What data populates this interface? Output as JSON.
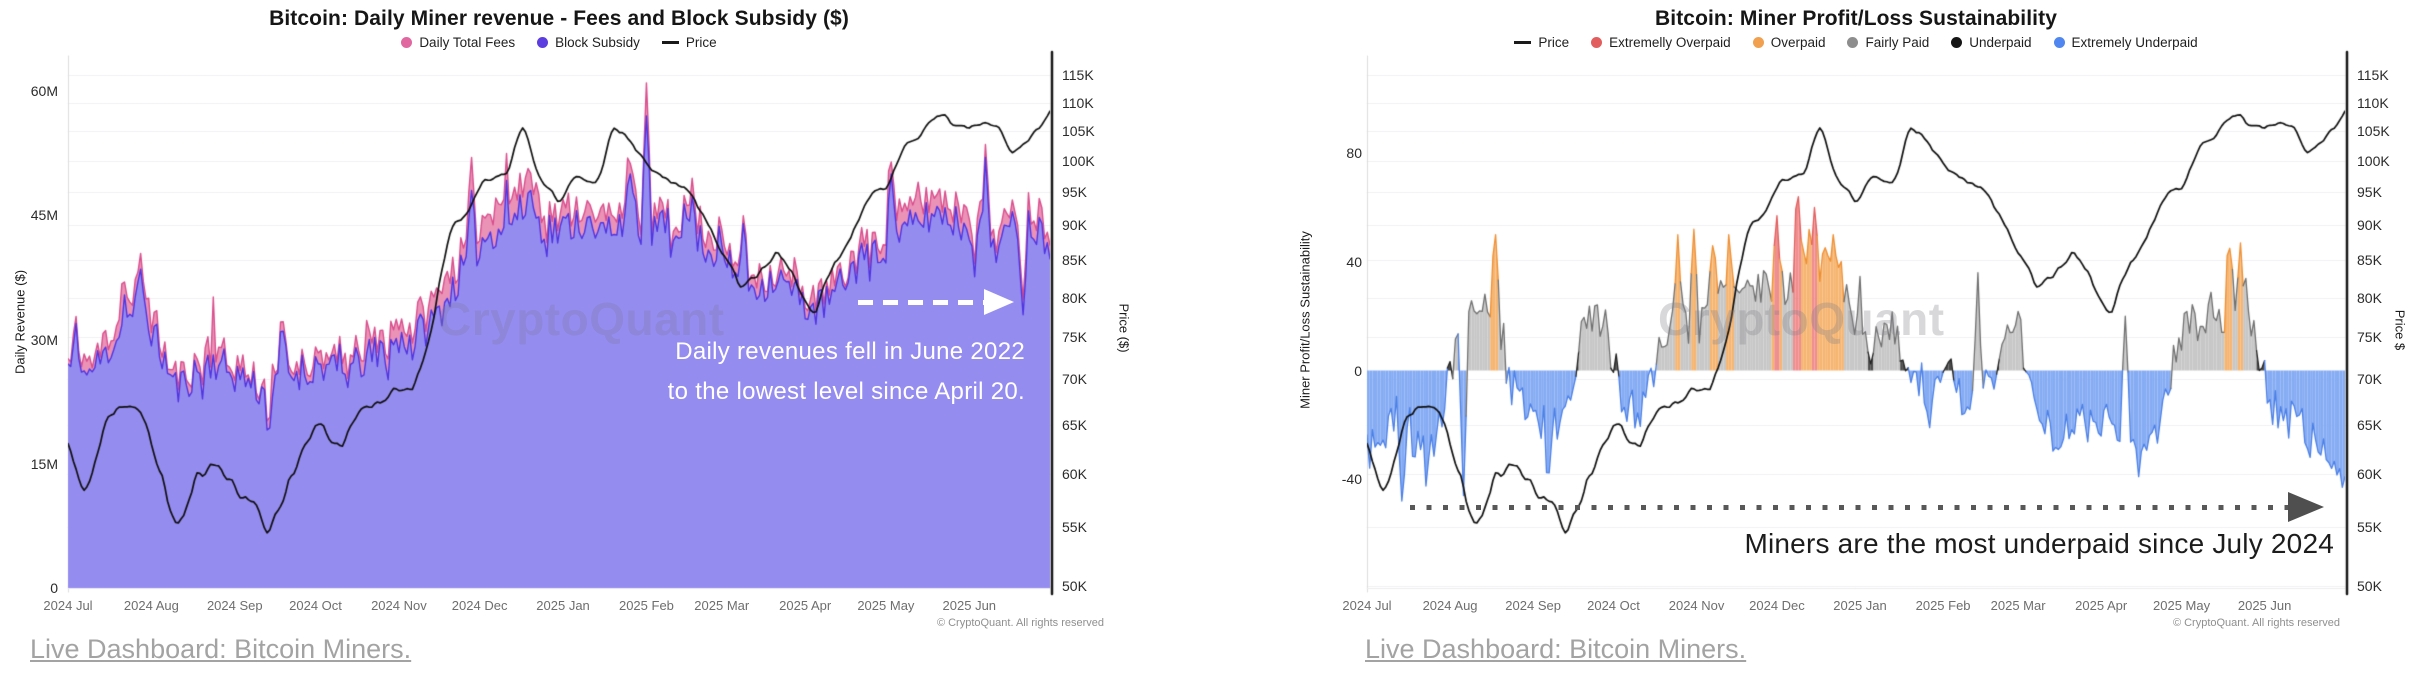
{
  "left_chart": {
    "title": "Bitcoin: Daily Miner revenue - Fees and Block Subsidy ($)",
    "legend": [
      {
        "label": "Daily Total Fees",
        "swatch": "dot",
        "color": "#e0679f"
      },
      {
        "label": "Block Subsidy",
        "swatch": "dot",
        "color": "#5b3de0"
      },
      {
        "label": "Price",
        "swatch": "line",
        "color": "#1a1a1a"
      }
    ],
    "watermark": "CryptoQuant",
    "annotation_line1": "Daily revenues fell in June 2022",
    "annotation_line2": "to the lowest level since April 20.",
    "copyright": "© CryptoQuant. All rights reserved",
    "link": "Live Dashboard: Bitcoin Miners."
  },
  "right_chart": {
    "title": "Bitcoin: Miner Profit/Loss Sustainability",
    "legend": [
      {
        "label": "Price",
        "swatch": "line",
        "color": "#1a1a1a"
      },
      {
        "label": "Extremelly Overpaid",
        "swatch": "dot",
        "color": "#e25d5d"
      },
      {
        "label": "Overpaid",
        "swatch": "dot",
        "color": "#f0a04f"
      },
      {
        "label": "Fairly Paid",
        "swatch": "dot",
        "color": "#8d8d8d"
      },
      {
        "label": "Underpaid",
        "swatch": "dot",
        "color": "#151515"
      },
      {
        "label": "Extremely Underpaid",
        "swatch": "dot",
        "color": "#4f86ef"
      }
    ],
    "watermark": "CryptoQuant",
    "annotation": "Miners are the most underpaid since July 2024",
    "copyright": "© CryptoQuant. All rights reserved",
    "link": "Live Dashboard: Bitcoin Miners."
  },
  "chart_data": [
    {
      "type": "area",
      "title": "Bitcoin: Daily Miner revenue - Fees and Block Subsidy ($)",
      "n_days": 366,
      "x_tick_labels": [
        "2024 Jul",
        "2024 Aug",
        "2024 Sep",
        "2024 Oct",
        "2024 Nov",
        "2024 Dec",
        "2025 Jan",
        "2025 Feb",
        "2025 Mar",
        "2025 Apr",
        "2025 May",
        "2025 Jun"
      ],
      "month_start_day": [
        0,
        31,
        62,
        92,
        123,
        153,
        184,
        215,
        243,
        274,
        304,
        335
      ],
      "y_left": {
        "label": "Daily Revenue ($)",
        "unit": "million USD per day",
        "range": [
          0,
          64
        ],
        "ticks": [
          {
            "v": 0,
            "label": "0"
          },
          {
            "v": 15,
            "label": "15M"
          },
          {
            "v": 30,
            "label": "30M"
          },
          {
            "v": 45,
            "label": "45M"
          },
          {
            "v": 60,
            "label": "60M"
          }
        ]
      },
      "y_right": {
        "label": "Price ($)",
        "scale": "log",
        "range": [
          49.8,
          118.3
        ],
        "ticks": [
          {
            "v": 50,
            "label": "50K"
          },
          {
            "v": 55,
            "label": "55K"
          },
          {
            "v": 60,
            "label": "60K"
          },
          {
            "v": 65,
            "label": "65K"
          },
          {
            "v": 70,
            "label": "70K"
          },
          {
            "v": 75,
            "label": "75K"
          },
          {
            "v": 80,
            "label": "80K"
          },
          {
            "v": 85,
            "label": "85K"
          },
          {
            "v": 90,
            "label": "90K"
          },
          {
            "v": 95,
            "label": "95K"
          },
          {
            "v": 100,
            "label": "100K"
          },
          {
            "v": 105,
            "label": "105K"
          },
          {
            "v": 110,
            "label": "110K"
          },
          {
            "v": 115,
            "label": "115K"
          }
        ]
      },
      "series": {
        "block_subsidy": {
          "name": "Block Subsidy",
          "line": "#4e35e2",
          "fill": "#958cf0",
          "noise_amp": 2.3,
          "weekly_musd": [
            27,
            25.5,
            28,
            31.5,
            34.5,
            29,
            24,
            26,
            27.5,
            26,
            25,
            23,
            25.5,
            26.5,
            27,
            25.5,
            27,
            28.5,
            29.5,
            30.5,
            32,
            35.5,
            39.5,
            42.5,
            44,
            45.5,
            44,
            43,
            44.5,
            42.5,
            44,
            45.5,
            43,
            43.5,
            44.5,
            41.5,
            39.5,
            37,
            36.5,
            37.5,
            35.5,
            33.5,
            35,
            38,
            40.5,
            41.5,
            43,
            44.5,
            45.5,
            44,
            43,
            41.5,
            43.5,
            44,
            42
          ],
          "spikes": [
            {
              "day": 27,
              "value": 38.5
            },
            {
              "day": 80,
              "value": 31
            },
            {
              "day": 150,
              "value": 48
            },
            {
              "day": 172,
              "value": 48
            },
            {
              "day": 209,
              "value": 50
            },
            {
              "day": 215,
              "value": 57
            },
            {
              "day": 251,
              "value": 44
            },
            {
              "day": 306,
              "value": 50
            },
            {
              "day": 341,
              "value": 52
            },
            {
              "day": 355,
              "value": 33
            }
          ]
        },
        "daily_total_fees": {
          "name": "Daily Total Fees",
          "line": "#d94e8c",
          "fill": "#eb92b7",
          "noise_amp": 0.7,
          "weekly_extra_musd": [
            1.2,
            1,
            1.5,
            2,
            1.6,
            1,
            0.8,
            1,
            2.2,
            1.2,
            0.8,
            0.8,
            1,
            1.2,
            1,
            0.8,
            1.2,
            1.8,
            2.2,
            2,
            2.4,
            2.4,
            2,
            2.5,
            3,
            2.5,
            2.2,
            2,
            1.8,
            2,
            1.6,
            1.8,
            1.5,
            1.2,
            1.5,
            1.8,
            1.5,
            1.2,
            1,
            1,
            1.2,
            1.5,
            1,
            1,
            1.5,
            1.8,
            2,
            2.2,
            2,
            2,
            1.8,
            1.5,
            1.5,
            2,
            1.5
          ],
          "spikes": [
            {
              "day": 54,
              "extra": 7
            },
            {
              "day": 111,
              "extra": 4
            },
            {
              "day": 150,
              "extra": 4
            },
            {
              "day": 170,
              "extra": 4.5
            },
            {
              "day": 215,
              "extra": 4
            },
            {
              "day": 305,
              "extra": 3.5
            }
          ]
        },
        "price": {
          "name": "Price",
          "line": "#0f0f0f",
          "noise_amp": 1.1,
          "weekly_kusd": [
            63,
            57.5,
            64.5,
            67.5,
            66.5,
            60.5,
            54.5,
            59.5,
            61,
            59,
            57.5,
            54.5,
            58.5,
            63.5,
            65,
            62.5,
            66.5,
            67.5,
            69.5,
            69,
            76,
            89,
            92,
            97.5,
            97,
            106,
            96.5,
            93.5,
            97.5,
            96,
            105.5,
            103,
            98.5,
            97,
            96,
            91.5,
            86,
            81.5,
            83.5,
            86.5,
            82.5,
            77.5,
            84,
            88,
            94.5,
            95.5,
            102.5,
            104.5,
            108.5,
            105,
            105.5,
            106.5,
            100.5,
            104,
            107.5
          ]
        }
      }
    },
    {
      "type": "oscillator",
      "title": "Bitcoin: Miner Profit/Loss Sustainability",
      "n_days": 366,
      "x_tick_labels": [
        "2024 Jul",
        "2024 Aug",
        "2024 Sep",
        "2024 Oct",
        "2024 Nov",
        "2024 Dec",
        "2025 Jan",
        "2025 Feb",
        "2025 Mar",
        "2025 Apr",
        "2025 May",
        "2025 Jun"
      ],
      "month_start_day": [
        0,
        31,
        62,
        92,
        123,
        153,
        184,
        215,
        243,
        274,
        304,
        335
      ],
      "y_left": {
        "label": "Miner Profit/Loss Sustainability",
        "range": [
          -80,
          115
        ],
        "ticks": [
          {
            "v": -40,
            "label": "-40"
          },
          {
            "v": 0,
            "label": "0"
          },
          {
            "v": 40,
            "label": "40"
          },
          {
            "v": 80,
            "label": "80"
          }
        ]
      },
      "y_right": {
        "label": "Price $",
        "scale": "log",
        "range": [
          49.8,
          118.3
        ],
        "ticks": [
          {
            "v": 50,
            "label": "50K"
          },
          {
            "v": 55,
            "label": "55K"
          },
          {
            "v": 60,
            "label": "60K"
          },
          {
            "v": 65,
            "label": "65K"
          },
          {
            "v": 70,
            "label": "70K"
          },
          {
            "v": 75,
            "label": "75K"
          },
          {
            "v": 80,
            "label": "80K"
          },
          {
            "v": 85,
            "label": "85K"
          },
          {
            "v": 90,
            "label": "90K"
          },
          {
            "v": 95,
            "label": "95K"
          },
          {
            "v": 100,
            "label": "100K"
          },
          {
            "v": 105,
            "label": "105K"
          },
          {
            "v": 110,
            "label": "110K"
          },
          {
            "v": 115,
            "label": "115K"
          }
        ]
      },
      "categories": [
        {
          "name": "Extremely Overpaid",
          "min": 55,
          "fill": "#ef8d8d",
          "line": "#e25d5d"
        },
        {
          "name": "Overpaid",
          "min": 38,
          "fill": "#f6b571",
          "line": "#ee8f33"
        },
        {
          "name": "Fairly Paid",
          "min": 8,
          "fill": "#c7c7c7",
          "line": "#707070"
        },
        {
          "name": "Underpaid",
          "min": 0,
          "fill": "#4b4b4b",
          "line": "#222222"
        },
        {
          "name": "Extremely Underpaid",
          "min": -999,
          "fill": "#85abf3",
          "line": "#4a7fe6"
        }
      ],
      "series": {
        "sustainability": {
          "name": "Miner Profit/Loss Sustainability",
          "noise_amp": 8,
          "weekly_index": [
            -18,
            -26,
            -12,
            -32,
            -20,
            12,
            26,
            18,
            -6,
            -14,
            -20,
            -10,
            16,
            19,
            -8,
            -16,
            4,
            20,
            14,
            26,
            30,
            28,
            34,
            30,
            36,
            40,
            34,
            20,
            8,
            14,
            4,
            -10,
            6,
            -14,
            -10,
            8,
            16,
            -14,
            -24,
            -18,
            -12,
            -20,
            -26,
            -22,
            -12,
            14,
            18,
            20,
            26,
            10,
            -14,
            -18,
            -24,
            -30,
            -38
          ],
          "spikes": [
            {
              "day": 13,
              "value": -48
            },
            {
              "day": 36,
              "value": -46
            },
            {
              "day": 48,
              "value": 50
            },
            {
              "day": 116,
              "value": 50
            },
            {
              "day": 122,
              "value": 52
            },
            {
              "day": 129,
              "value": 46
            },
            {
              "day": 153,
              "value": 57
            },
            {
              "day": 161,
              "value": 64
            },
            {
              "day": 167,
              "value": 60
            },
            {
              "day": 174,
              "value": 50
            },
            {
              "day": 228,
              "value": 36
            },
            {
              "day": 283,
              "value": 20
            },
            {
              "day": 322,
              "value": 45
            },
            {
              "day": 326,
              "value": 47
            },
            {
              "day": 355,
              "value": -30
            },
            {
              "day": 360,
              "value": -36
            },
            {
              "day": 364,
              "value": -43
            }
          ]
        },
        "price": {
          "name": "Price",
          "line": "#0f0f0f",
          "noise_amp": 1.1,
          "weekly_kusd": [
            63,
            57.5,
            64.5,
            67.5,
            66.5,
            60.5,
            54.5,
            59.5,
            61,
            59,
            57.5,
            54.5,
            58.5,
            63.5,
            65,
            62.5,
            66.5,
            67.5,
            69.5,
            69,
            76,
            89,
            92,
            97.5,
            97,
            106,
            96.5,
            93.5,
            97.5,
            96,
            105.5,
            103,
            98.5,
            97,
            96,
            91.5,
            86,
            81.5,
            83.5,
            86.5,
            82.5,
            77.5,
            84,
            88,
            94.5,
            95.5,
            102.5,
            104.5,
            108.5,
            105,
            105.5,
            106.5,
            100.5,
            104,
            107.5
          ]
        }
      }
    }
  ]
}
